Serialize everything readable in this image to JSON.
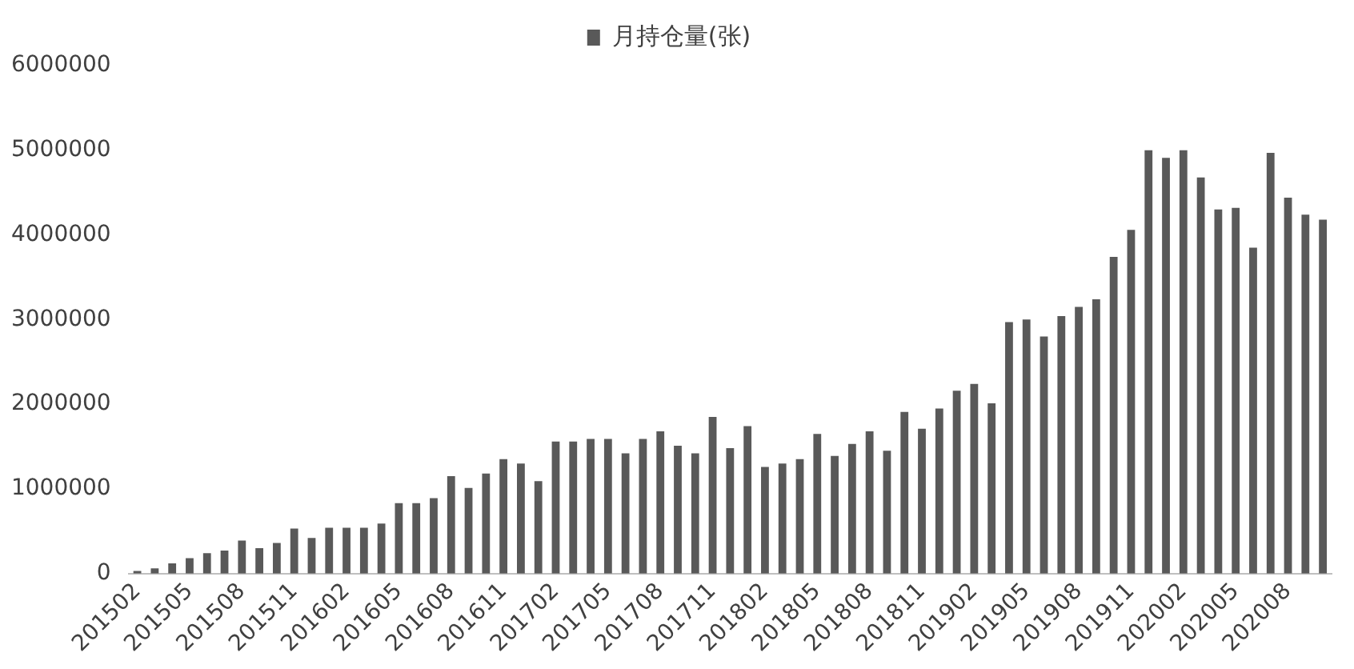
{
  "chart_data": {
    "type": "bar",
    "categories": [
      "201502",
      null,
      null,
      "201505",
      null,
      null,
      "201508",
      null,
      null,
      "201511",
      null,
      null,
      "201602",
      null,
      null,
      "201605",
      null,
      null,
      "201608",
      null,
      null,
      "201611",
      null,
      null,
      "201702",
      null,
      null,
      "201705",
      null,
      null,
      "201708",
      null,
      null,
      "201711",
      null,
      null,
      "201802",
      null,
      null,
      "201805",
      null,
      null,
      "201808",
      null,
      null,
      "201811",
      null,
      null,
      "201902",
      null,
      null,
      "201905",
      null,
      null,
      "201908",
      null,
      null,
      "201911",
      null,
      null,
      "202002",
      null,
      null,
      "202005",
      null,
      null,
      "202008",
      null,
      null
    ],
    "series": [
      {
        "name": "月持仓量(张)",
        "color": "#595959",
        "values": [
          30000,
          60000,
          120000,
          180000,
          240000,
          270000,
          390000,
          300000,
          360000,
          530000,
          420000,
          540000,
          540000,
          540000,
          590000,
          830000,
          830000,
          890000,
          1150000,
          1010000,
          1180000,
          1350000,
          1300000,
          1090000,
          1560000,
          1560000,
          1590000,
          1590000,
          1420000,
          1590000,
          1680000,
          1510000,
          1420000,
          1850000,
          1480000,
          1740000,
          1260000,
          1300000,
          1350000,
          1650000,
          1390000,
          1530000,
          1680000,
          1450000,
          1910000,
          1710000,
          1950000,
          2160000,
          2240000,
          2010000,
          2970000,
          3000000,
          2800000,
          3040000,
          3150000,
          3240000,
          3740000,
          4060000,
          5000000,
          4910000,
          5000000,
          4680000,
          4300000,
          4320000,
          3850000,
          4970000,
          4440000,
          4240000,
          4180000
        ]
      }
    ],
    "ylim": [
      0,
      6000000
    ],
    "yticks": [
      0,
      1000000,
      2000000,
      3000000,
      4000000,
      5000000,
      6000000
    ],
    "legend": "top",
    "grid": false
  }
}
